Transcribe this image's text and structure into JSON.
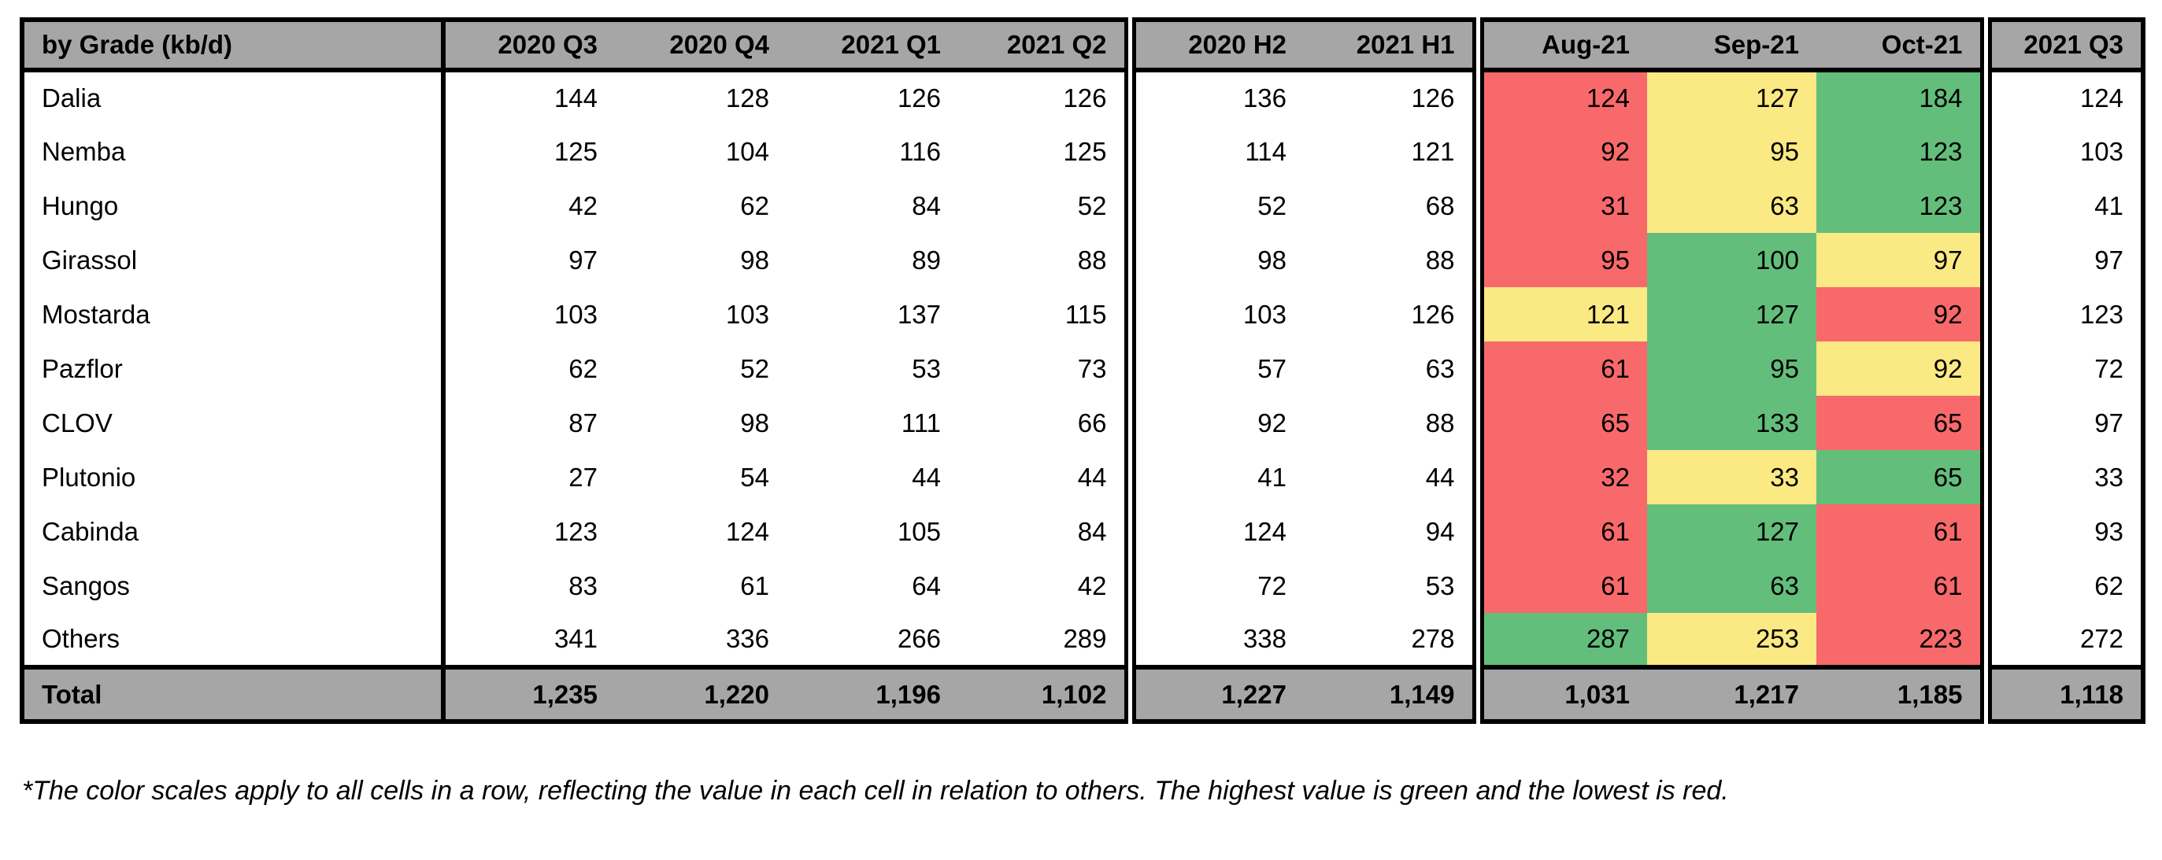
{
  "chart_data": {
    "type": "table",
    "title": "by Grade (kb/d)",
    "column_groups": [
      {
        "name": "quarters",
        "columns": [
          "2020 Q3",
          "2020 Q4",
          "2021 Q1",
          "2021 Q2"
        ]
      },
      {
        "name": "halves",
        "columns": [
          "2020 H2",
          "2021 H1"
        ]
      },
      {
        "name": "months",
        "columns": [
          "Aug-21",
          "Sep-21",
          "Oct-21"
        ],
        "color_scale": true
      },
      {
        "name": "latest",
        "columns": [
          "2021 Q3"
        ]
      }
    ],
    "rows": [
      {
        "grade": "Dalia",
        "quarters": [
          144,
          128,
          126,
          126
        ],
        "halves": [
          136,
          126
        ],
        "months": [
          124,
          127,
          184
        ],
        "month_colors": [
          "red",
          "yellow",
          "green"
        ],
        "latest": 124
      },
      {
        "grade": "Nemba",
        "quarters": [
          125,
          104,
          116,
          125
        ],
        "halves": [
          114,
          121
        ],
        "months": [
          92,
          95,
          123
        ],
        "month_colors": [
          "red",
          "yellow",
          "green"
        ],
        "latest": 103
      },
      {
        "grade": "Hungo",
        "quarters": [
          42,
          62,
          84,
          52
        ],
        "halves": [
          52,
          68
        ],
        "months": [
          31,
          63,
          123
        ],
        "month_colors": [
          "red",
          "yellow",
          "green"
        ],
        "latest": 41
      },
      {
        "grade": "Girassol",
        "quarters": [
          97,
          98,
          89,
          88
        ],
        "halves": [
          98,
          88
        ],
        "months": [
          95,
          100,
          97
        ],
        "month_colors": [
          "red",
          "green",
          "yellow"
        ],
        "latest": 97
      },
      {
        "grade": "Mostarda",
        "quarters": [
          103,
          103,
          137,
          115
        ],
        "halves": [
          103,
          126
        ],
        "months": [
          121,
          127,
          92
        ],
        "month_colors": [
          "yellow",
          "green",
          "red"
        ],
        "latest": 123
      },
      {
        "grade": "Pazflor",
        "quarters": [
          62,
          52,
          53,
          73
        ],
        "halves": [
          57,
          63
        ],
        "months": [
          61,
          95,
          92
        ],
        "month_colors": [
          "red",
          "green",
          "yellow"
        ],
        "latest": 72
      },
      {
        "grade": "CLOV",
        "quarters": [
          87,
          98,
          111,
          66
        ],
        "halves": [
          92,
          88
        ],
        "months": [
          65,
          133,
          65
        ],
        "month_colors": [
          "red",
          "green",
          "red"
        ],
        "latest": 97
      },
      {
        "grade": "Plutonio",
        "quarters": [
          27,
          54,
          44,
          44
        ],
        "halves": [
          41,
          44
        ],
        "months": [
          32,
          33,
          65
        ],
        "month_colors": [
          "red",
          "yellow",
          "green"
        ],
        "latest": 33
      },
      {
        "grade": "Cabinda",
        "quarters": [
          123,
          124,
          105,
          84
        ],
        "halves": [
          124,
          94
        ],
        "months": [
          61,
          127,
          61
        ],
        "month_colors": [
          "red",
          "green",
          "red"
        ],
        "latest": 93
      },
      {
        "grade": "Sangos",
        "quarters": [
          83,
          61,
          64,
          42
        ],
        "halves": [
          72,
          53
        ],
        "months": [
          61,
          63,
          61
        ],
        "month_colors": [
          "red",
          "green",
          "red"
        ],
        "latest": 62
      },
      {
        "grade": "Others",
        "quarters": [
          341,
          336,
          266,
          289
        ],
        "halves": [
          338,
          278
        ],
        "months": [
          287,
          253,
          223
        ],
        "month_colors": [
          "green",
          "yellow",
          "red"
        ],
        "latest": 272
      }
    ],
    "total": {
      "grade": "Total",
      "quarters": [
        "1,235",
        "1,220",
        "1,196",
        "1,102"
      ],
      "halves": [
        "1,227",
        "1,149"
      ],
      "months": [
        "1,031",
        "1,217",
        "1,185"
      ],
      "latest": "1,118"
    }
  },
  "footnote": "*The color scales apply to all cells in a row, reflecting the value in each cell in relation to others. The highest value is green and the lowest is red.",
  "colors": {
    "red": "#F8696B",
    "yellow": "#FBE983",
    "green": "#63BE7B",
    "header_gray": "#A6A6A6"
  }
}
